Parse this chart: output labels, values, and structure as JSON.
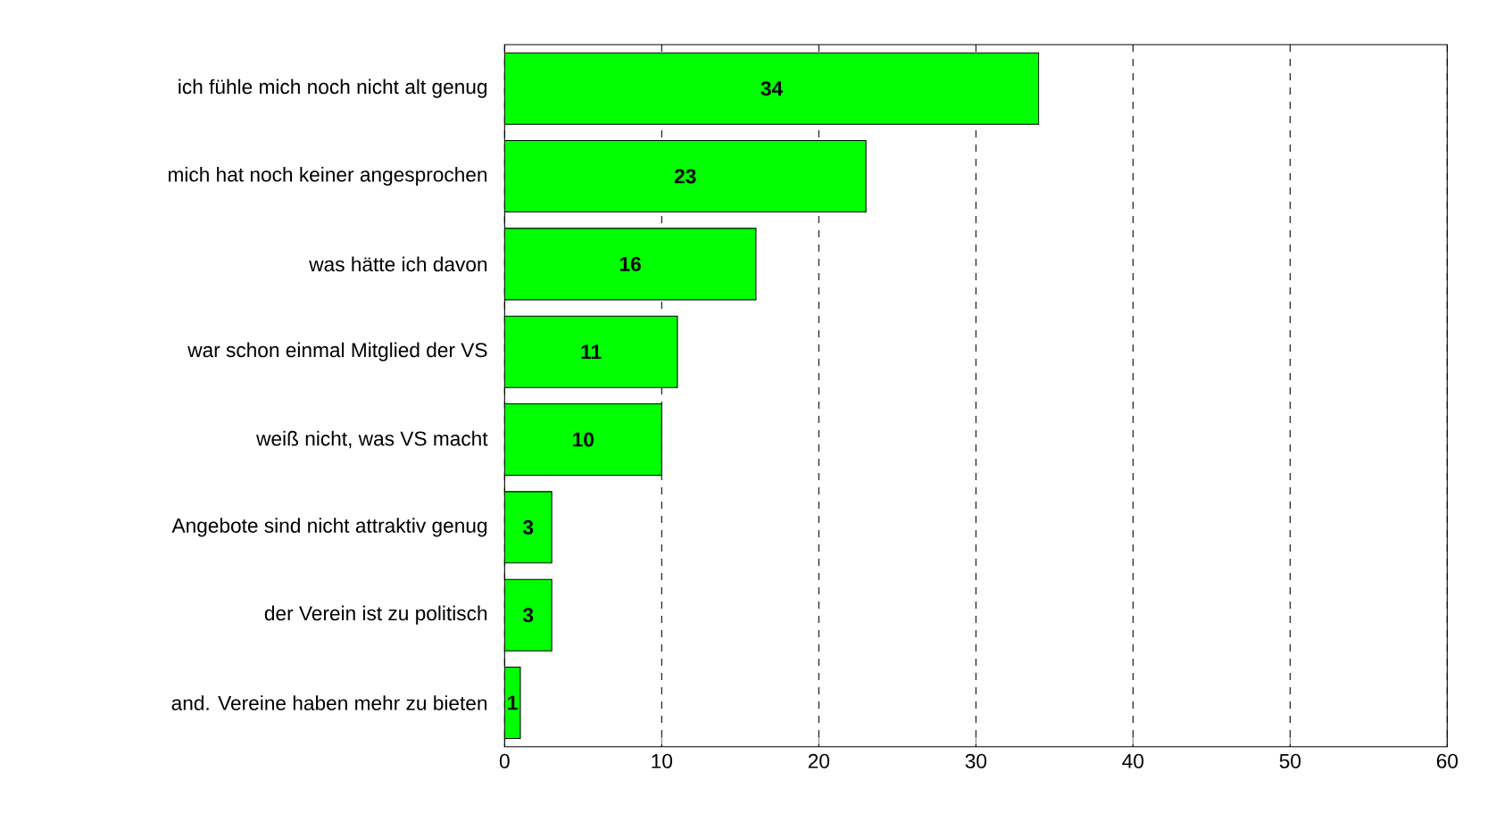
{
  "chart_data": {
    "type": "bar",
    "orientation": "horizontal",
    "categories": [
      "ich fühle mich noch nicht alt genug",
      "mich hat noch keiner angesprochen",
      "was hätte ich davon",
      "war schon einmal Mitglied der VS",
      "weiß nicht, was VS macht",
      "Angebote sind nicht attraktiv genug",
      "der Verein ist zu politisch",
      "and. Vereine haben mehr zu bieten"
    ],
    "values": [
      34,
      23,
      16,
      11,
      10,
      3,
      3,
      1
    ],
    "color": "#00ff00",
    "xlim": [
      0,
      60
    ],
    "xticks": [
      0,
      10,
      20,
      30,
      40,
      50,
      60
    ],
    "grid": "x",
    "data_labels": true
  }
}
